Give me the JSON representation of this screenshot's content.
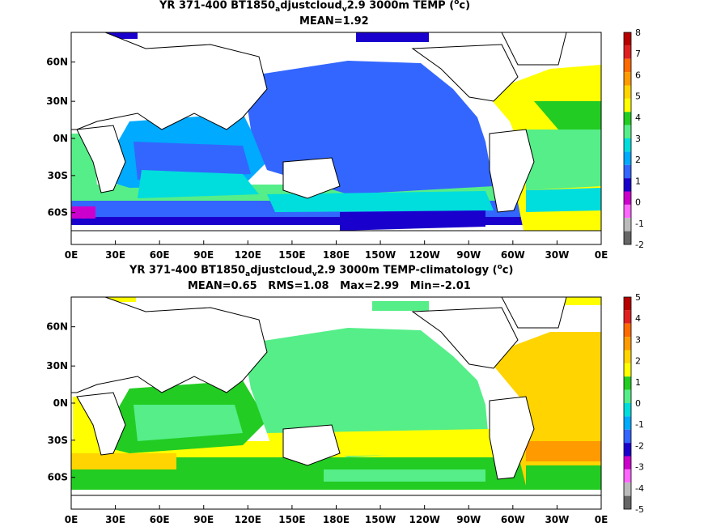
{
  "panels": [
    {
      "title": {
        "prefix": "YR 371-400 BT1850",
        "sub1": "a",
        "mid": "djustcloud",
        "sub2": "v",
        "suffix": "2.9 3000m TEMP (",
        "sup": "o",
        "end": "c)"
      },
      "stats": "MEAN=1.92",
      "colorbar_labels": [
        "8",
        "7",
        "6",
        "5",
        "4",
        "3",
        "2",
        "1",
        "0",
        "-1",
        "-2"
      ],
      "colorbar_colors": [
        "#b80000",
        "#e02020",
        "#ff6a00",
        "#ff9a00",
        "#ffd400",
        "#ffff00",
        "#22cc22",
        "#55ee88",
        "#00dddd",
        "#00aaff",
        "#3366ff",
        "#1a00cc",
        "#cc00cc",
        "#ff66ff",
        "#bbbbbb",
        "#666666"
      ]
    },
    {
      "title": {
        "prefix": "YR 371-400 BT1850",
        "sub1": "a",
        "mid": "djustcloud",
        "sub2": "v",
        "suffix": "2.9 3000m TEMP-climatology (",
        "sup": "o",
        "end": "c)"
      },
      "stats": "MEAN=0.65   RMS=1.08   Max=2.99   Min=-2.01",
      "colorbar_labels": [
        "5",
        "4",
        "3",
        "2",
        "1",
        "0",
        "-1",
        "-2",
        "-3",
        "-4",
        "-5"
      ],
      "colorbar_colors": [
        "#b80000",
        "#e02020",
        "#ff6a00",
        "#ff9a00",
        "#ffd400",
        "#ffff00",
        "#22cc22",
        "#55ee88",
        "#00dddd",
        "#00aaff",
        "#3366ff",
        "#1a00cc",
        "#cc00cc",
        "#ff66ff",
        "#bbbbbb",
        "#666666"
      ]
    }
  ],
  "x_ticks": [
    "0E",
    "30E",
    "60E",
    "90E",
    "120E",
    "150E",
    "180E",
    "150W",
    "120W",
    "90W",
    "60W",
    "30W",
    "0E"
  ],
  "y_ticks": [
    "60N",
    "30N",
    "0N",
    "30S",
    "60S"
  ]
}
